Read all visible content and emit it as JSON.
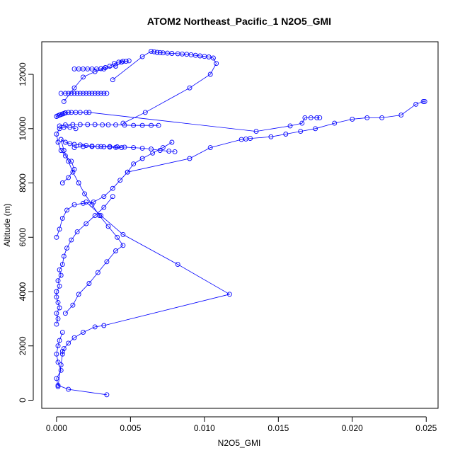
{
  "chart_data": {
    "type": "line",
    "title": "ATOM2 Northeast_Pacific_1 N2O5_GMI",
    "xlabel": "N2O5_GMI",
    "ylabel": "Altitude (m)",
    "xlim": [
      -0.001,
      0.0258
    ],
    "ylim": [
      -300,
      13200
    ],
    "xticks": [
      0.0,
      0.005,
      0.01,
      0.015,
      0.02,
      0.025
    ],
    "xtick_labels": [
      "0.000",
      "0.005",
      "0.010",
      "0.015",
      "0.020",
      "0.025"
    ],
    "yticks": [
      0,
      2000,
      4000,
      6000,
      8000,
      10000,
      12000
    ],
    "ytick_labels": [
      "0",
      "2000",
      "4000",
      "6000",
      "8000",
      "10000",
      "12000"
    ],
    "grid": false,
    "legend": "none",
    "marker": "open-circle",
    "color": "#0000ff",
    "series": [
      {
        "x": [
          0.0034,
          0.0008,
          0.0001,
          0.0,
          0.0003,
          0.0001,
          0.0,
          0.0001,
          0.0002,
          0.0004
        ],
        "y": [
          200,
          400,
          550,
          800,
          1100,
          1400,
          1700,
          2000,
          2200,
          2500
        ]
      },
      {
        "x": [
          0.0001,
          0.0003,
          0.0004,
          0.0004,
          0.0005,
          0.0008,
          0.0012,
          0.0018,
          0.0026,
          0.0032,
          0.0117,
          0.0082,
          0.0045,
          0.003,
          0.002
        ],
        "y": [
          500,
          1300,
          1700,
          1800,
          1900,
          2100,
          2300,
          2500,
          2700,
          2750,
          3900,
          5000,
          6100,
          6800,
          7300
        ]
      },
      {
        "x": [
          0.0,
          0.0001,
          0.0,
          0.0002,
          0.0001,
          0.0,
          0.0,
          0.0002,
          0.0001,
          0.0003,
          0.0002,
          0.0004,
          0.0005,
          0.0007,
          0.001,
          0.0014,
          0.002,
          0.0026,
          0.0032,
          0.0038
        ],
        "y": [
          2800,
          3000,
          3200,
          3400,
          3600,
          3800,
          4000,
          4200,
          4400,
          4600,
          4800,
          5000,
          5300,
          5600,
          5900,
          6200,
          6500,
          6800,
          7100,
          7500
        ]
      },
      {
        "x": [
          0.0006,
          0.0011,
          0.0015,
          0.0022,
          0.0028,
          0.0034,
          0.004,
          0.0045,
          0.0041,
          0.0035,
          0.0029,
          0.0024,
          0.0019,
          0.0015,
          0.0011,
          0.0008,
          0.0005,
          0.0003
        ],
        "y": [
          3200,
          3500,
          3900,
          4300,
          4700,
          5100,
          5500,
          5700,
          6000,
          6400,
          6800,
          7200,
          7600,
          8000,
          8400,
          8800,
          9200,
          9600
        ]
      },
      {
        "x": [
          0.0,
          0.0002,
          0.0004,
          0.0007,
          0.0012,
          0.0018,
          0.0025,
          0.0032,
          0.0038,
          0.0043,
          0.0048,
          0.0052,
          0.0058,
          0.0065,
          0.0072,
          0.0078
        ],
        "y": [
          6000,
          6300,
          6700,
          7000,
          7200,
          7250,
          7300,
          7500,
          7800,
          8100,
          8400,
          8700,
          8900,
          9100,
          9300,
          9500
        ]
      },
      {
        "x": [
          0.0012,
          0.0018,
          0.0024,
          0.003,
          0.0036,
          0.0041,
          0.0046,
          0.0052,
          0.0058,
          0.0064,
          0.007,
          0.0076,
          0.008
        ],
        "y": [
          9300,
          9340,
          9340,
          9340,
          9340,
          9330,
          9320,
          9300,
          9280,
          9250,
          9200,
          9170,
          9150
        ]
      },
      {
        "x": [
          0.0048,
          0.009,
          0.0104,
          0.0125,
          0.0128,
          0.0131,
          0.0145,
          0.0155,
          0.0165,
          0.0175,
          0.0188,
          0.02,
          0.021,
          0.022,
          0.0233,
          0.0243,
          0.0248,
          0.0249
        ],
        "y": [
          8400,
          8900,
          9300,
          9600,
          9620,
          9640,
          9700,
          9800,
          9900,
          10000,
          10200,
          10350,
          10400,
          10400,
          10500,
          10900,
          11000,
          11000
        ]
      },
      {
        "x": [
          0.0002,
          0.0006,
          0.0011,
          0.0016,
          0.0021,
          0.0026,
          0.0031,
          0.0035,
          0.004,
          0.0046,
          0.0052,
          0.0058,
          0.0064,
          0.0069
        ],
        "y": [
          10100,
          10140,
          10150,
          10150,
          10150,
          10150,
          10140,
          10140,
          10140,
          10130,
          10120,
          10120,
          10120,
          10120
        ]
      },
      {
        "x": [
          0.0,
          0.0001,
          0.0002,
          0.0003,
          0.0004,
          0.0005,
          0.0006,
          0.0008,
          0.001,
          0.0013,
          0.0016,
          0.002,
          0.0022,
          0.0135,
          0.0158,
          0.0166,
          0.0168,
          0.0172,
          0.0176,
          0.0178
        ],
        "y": [
          10450,
          10480,
          10500,
          10520,
          10540,
          10560,
          10580,
          10600,
          10600,
          10600,
          10600,
          10600,
          10600,
          9900,
          10100,
          10200,
          10400,
          10400,
          10400,
          10400
        ]
      },
      {
        "x": [
          0.0003,
          0.0006,
          0.0008,
          0.001,
          0.0012,
          0.0014,
          0.0016,
          0.0018,
          0.002,
          0.0022,
          0.0024,
          0.0026,
          0.0028,
          0.003,
          0.0032,
          0.0034
        ],
        "y": [
          11300,
          11300,
          11300,
          11300,
          11300,
          11300,
          11300,
          11300,
          11300,
          11300,
          11300,
          11300,
          11300,
          11300,
          11300,
          11300
        ]
      },
      {
        "x": [
          0.0005,
          0.0012,
          0.0018,
          0.0026,
          0.0032,
          0.004,
          0.0044,
          0.0047,
          0.0049
        ],
        "y": [
          11000,
          11500,
          11900,
          12100,
          12200,
          12300,
          12450,
          12480,
          12500
        ]
      },
      {
        "x": [
          0.0012,
          0.0015,
          0.0018,
          0.0021,
          0.0024,
          0.0027,
          0.003,
          0.0033,
          0.0036,
          0.0039,
          0.0042,
          0.0045
        ],
        "y": [
          12200,
          12200,
          12200,
          12200,
          12200,
          12200,
          12210,
          12250,
          12300,
          12400,
          12450,
          12480
        ]
      },
      {
        "x": [
          0.0038,
          0.0058,
          0.0064,
          0.0066,
          0.0068,
          0.007,
          0.0072,
          0.0075,
          0.0078,
          0.0082,
          0.0085,
          0.0088,
          0.0091,
          0.0094,
          0.0097,
          0.01,
          0.0103,
          0.0106,
          0.0108,
          0.0104,
          0.009,
          0.006,
          0.0045
        ],
        "y": [
          11800,
          12650,
          12850,
          12830,
          12810,
          12800,
          12790,
          12780,
          12770,
          12760,
          12750,
          12740,
          12720,
          12700,
          12680,
          12660,
          12640,
          12600,
          12400,
          12000,
          11500,
          10600,
          10200
        ]
      },
      {
        "x": [
          0.0003,
          0.0006,
          0.0009,
          0.0012,
          0.0016,
          0.002,
          0.0024,
          0.0028,
          0.0032,
          0.0036,
          0.004,
          0.0044
        ],
        "y": [
          9600,
          9500,
          9450,
          9420,
          9400,
          9380,
          9360,
          9340,
          9330,
          9320,
          9310,
          9300
        ]
      },
      {
        "x": [
          0.0004,
          0.0008,
          0.0012,
          0.001,
          0.0006,
          0.0003,
          0.0001,
          0.0,
          0.0002,
          0.0005,
          0.0009,
          0.0013
        ],
        "y": [
          8000,
          8200,
          8500,
          8800,
          9000,
          9200,
          9500,
          9800,
          10000,
          10050,
          10050,
          10000
        ]
      }
    ]
  }
}
